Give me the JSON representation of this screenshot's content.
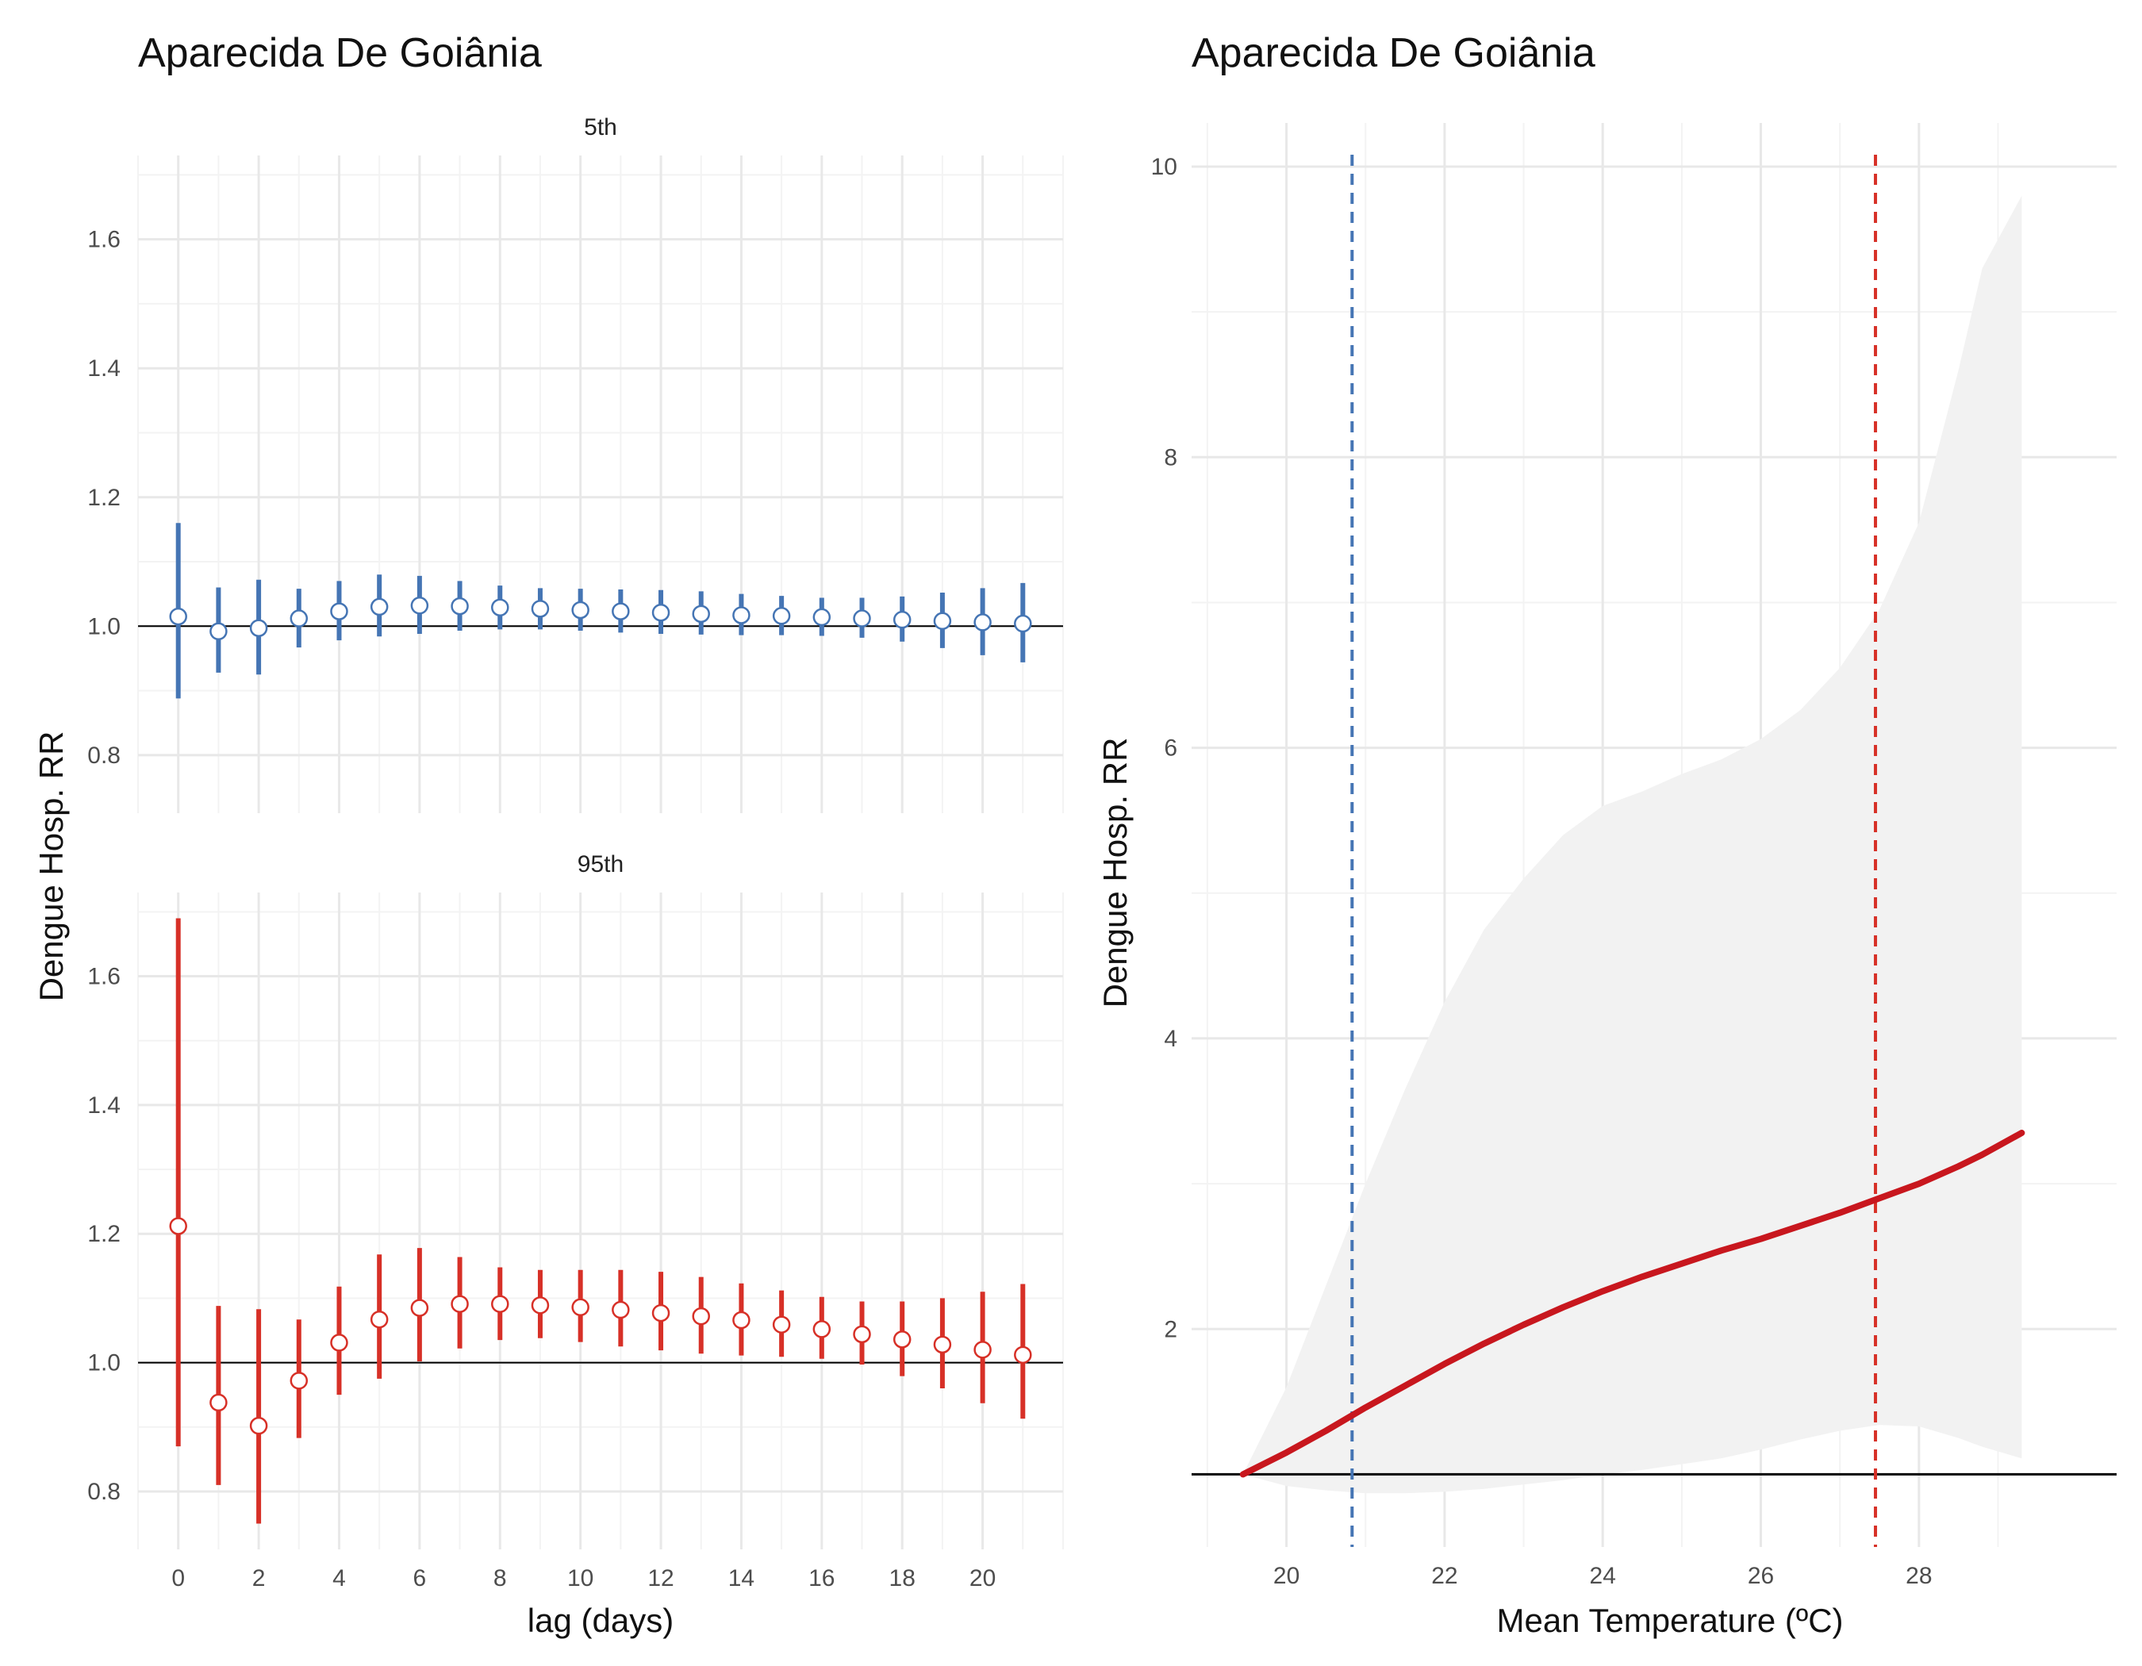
{
  "colors": {
    "blue": "#4575b4",
    "red": "#d73027",
    "curve": "#c8171e",
    "band": "#f2f2f2",
    "grid_major": "#e8e8e8",
    "grid_minor": "#f3f3f3",
    "reference": "#000000"
  },
  "left_panel": {
    "title": "Aparecida De Goiânia",
    "ylabel": "Dengue Hosp. RR",
    "xlabel": "lag (days)"
  },
  "right_panel": {
    "title": "Aparecida De Goiânia",
    "ylabel": "Dengue Hosp. RR",
    "xlabel": "Mean Temperature (ºC)"
  },
  "chart_data": [
    {
      "type": "scatter",
      "facet": "5th",
      "x": [
        0,
        1,
        2,
        3,
        4,
        5,
        6,
        7,
        8,
        9,
        10,
        11,
        12,
        13,
        14,
        15,
        16,
        17,
        18,
        19,
        20,
        21
      ],
      "estimate": [
        1.015,
        0.992,
        0.997,
        1.012,
        1.023,
        1.03,
        1.032,
        1.031,
        1.029,
        1.027,
        1.025,
        1.023,
        1.021,
        1.019,
        1.017,
        1.016,
        1.014,
        1.012,
        1.01,
        1.008,
        1.006,
        1.004
      ],
      "lower": [
        0.888,
        0.928,
        0.925,
        0.967,
        0.978,
        0.984,
        0.988,
        0.993,
        0.995,
        0.995,
        0.993,
        0.99,
        0.988,
        0.987,
        0.986,
        0.986,
        0.985,
        0.982,
        0.976,
        0.966,
        0.955,
        0.944
      ],
      "upper": [
        1.16,
        1.06,
        1.072,
        1.058,
        1.07,
        1.08,
        1.078,
        1.07,
        1.063,
        1.059,
        1.058,
        1.057,
        1.056,
        1.054,
        1.05,
        1.047,
        1.044,
        1.044,
        1.046,
        1.052,
        1.059,
        1.067
      ],
      "color": "#4575b4",
      "xlim": [
        -1,
        22
      ],
      "ylim": [
        0.71,
        1.73
      ],
      "yticks": [
        0.8,
        1.0,
        1.2,
        1.4,
        1.6
      ],
      "xticks": [
        0,
        2,
        4,
        6,
        8,
        10,
        12,
        14,
        16,
        18,
        20
      ],
      "reference_line": 1.0
    },
    {
      "type": "scatter",
      "facet": "95th",
      "x": [
        0,
        1,
        2,
        3,
        4,
        5,
        6,
        7,
        8,
        9,
        10,
        11,
        12,
        13,
        14,
        15,
        16,
        17,
        18,
        19,
        20,
        21
      ],
      "estimate": [
        1.212,
        0.938,
        0.902,
        0.972,
        1.031,
        1.067,
        1.085,
        1.091,
        1.091,
        1.089,
        1.086,
        1.082,
        1.077,
        1.072,
        1.066,
        1.059,
        1.052,
        1.044,
        1.036,
        1.028,
        1.02,
        1.012
      ],
      "lower": [
        0.87,
        0.81,
        0.75,
        0.883,
        0.95,
        0.975,
        1.002,
        1.022,
        1.035,
        1.038,
        1.032,
        1.025,
        1.019,
        1.014,
        1.011,
        1.009,
        1.006,
        0.997,
        0.979,
        0.96,
        0.937,
        0.913
      ],
      "upper": [
        1.69,
        1.088,
        1.083,
        1.067,
        1.118,
        1.168,
        1.178,
        1.164,
        1.148,
        1.144,
        1.144,
        1.144,
        1.141,
        1.133,
        1.123,
        1.112,
        1.102,
        1.095,
        1.095,
        1.1,
        1.11,
        1.122
      ],
      "color": "#d73027",
      "xlim": [
        -1,
        22
      ],
      "ylim": [
        0.71,
        1.73
      ],
      "yticks": [
        0.8,
        1.0,
        1.2,
        1.4,
        1.6
      ],
      "xticks": [
        0,
        2,
        4,
        6,
        8,
        10,
        12,
        14,
        16,
        18,
        20
      ],
      "reference_line": 1.0
    },
    {
      "type": "line",
      "x": [
        19.45,
        20,
        20.5,
        21,
        21.5,
        22,
        22.5,
        23,
        23.5,
        24,
        24.5,
        25,
        25.5,
        26,
        26.5,
        27,
        27.5,
        28,
        28.5,
        28.8,
        29.3
      ],
      "y": [
        1.0,
        1.15,
        1.3,
        1.46,
        1.61,
        1.76,
        1.9,
        2.03,
        2.15,
        2.26,
        2.36,
        2.45,
        2.54,
        2.62,
        2.71,
        2.8,
        2.9,
        3.0,
        3.12,
        3.2,
        3.35
      ],
      "ci_lower": [
        1.0,
        0.92,
        0.89,
        0.87,
        0.87,
        0.88,
        0.9,
        0.93,
        0.96,
        1.0,
        1.03,
        1.07,
        1.11,
        1.17,
        1.24,
        1.3,
        1.34,
        1.33,
        1.25,
        1.19,
        1.11
      ],
      "ci_upper": [
        1.0,
        1.6,
        2.3,
        3.0,
        3.65,
        4.25,
        4.75,
        5.1,
        5.4,
        5.6,
        5.7,
        5.82,
        5.92,
        6.06,
        6.26,
        6.55,
        6.95,
        7.55,
        8.6,
        9.3,
        9.8
      ],
      "color": "#c8171e",
      "xlim": [
        18.8,
        30.5
      ],
      "ylim": [
        0.5,
        10.3
      ],
      "xticks": [
        20,
        22,
        24,
        26,
        28
      ],
      "yticks": [
        2,
        4,
        6,
        8,
        10
      ],
      "reference_line": 1.0,
      "vlines": [
        {
          "x": 20.83,
          "color": "#4575b4",
          "style": "dashed"
        },
        {
          "x": 27.45,
          "color": "#d73027",
          "style": "dashed"
        }
      ]
    }
  ]
}
